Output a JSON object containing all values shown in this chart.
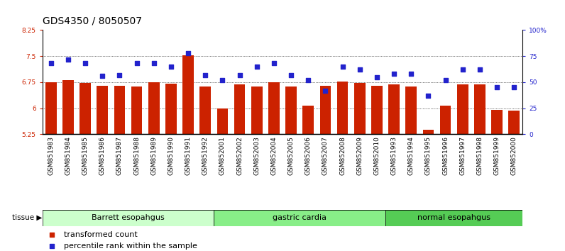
{
  "title": "GDS4350 / 8050507",
  "samples": [
    "GSM851983",
    "GSM851984",
    "GSM851985",
    "GSM851986",
    "GSM851987",
    "GSM851988",
    "GSM851989",
    "GSM851990",
    "GSM851991",
    "GSM851992",
    "GSM852001",
    "GSM852002",
    "GSM852003",
    "GSM852004",
    "GSM852005",
    "GSM852006",
    "GSM852007",
    "GSM852008",
    "GSM852009",
    "GSM852010",
    "GSM851993",
    "GSM851994",
    "GSM851995",
    "GSM851996",
    "GSM851997",
    "GSM851998",
    "GSM851999",
    "GSM852000"
  ],
  "bar_values": [
    6.75,
    6.82,
    6.72,
    6.65,
    6.65,
    6.63,
    6.75,
    6.7,
    7.52,
    6.62,
    6.0,
    6.68,
    6.63,
    6.75,
    6.62,
    6.08,
    6.65,
    6.76,
    6.72,
    6.65,
    6.68,
    6.62,
    5.38,
    6.08,
    6.68,
    6.68,
    5.96,
    5.93
  ],
  "blue_values": [
    68,
    72,
    68,
    56,
    57,
    68,
    68,
    65,
    78,
    57,
    52,
    57,
    65,
    68,
    57,
    52,
    42,
    65,
    62,
    55,
    58,
    58,
    37,
    52,
    62,
    62,
    45,
    45
  ],
  "groups": [
    {
      "label": "Barrett esopahgus",
      "start": 0,
      "end": 9,
      "color": "#ccffcc"
    },
    {
      "label": "gastric cardia",
      "start": 10,
      "end": 19,
      "color": "#88ee88"
    },
    {
      "label": "normal esopahgus",
      "start": 20,
      "end": 27,
      "color": "#55cc55"
    }
  ],
  "ylim_left": [
    5.25,
    8.25
  ],
  "ylim_right": [
    0,
    100
  ],
  "yticks_left": [
    5.25,
    6.0,
    6.75,
    7.5,
    8.25
  ],
  "yticks_right": [
    0,
    25,
    50,
    75,
    100
  ],
  "ytick_labels_right": [
    "0",
    "25",
    "50",
    "75",
    "100%"
  ],
  "bar_color": "#cc2200",
  "dot_color": "#2222cc",
  "bar_width": 0.65,
  "title_fontsize": 10,
  "tick_fontsize": 6.5,
  "group_label_fontsize": 8,
  "legend_fontsize": 8
}
